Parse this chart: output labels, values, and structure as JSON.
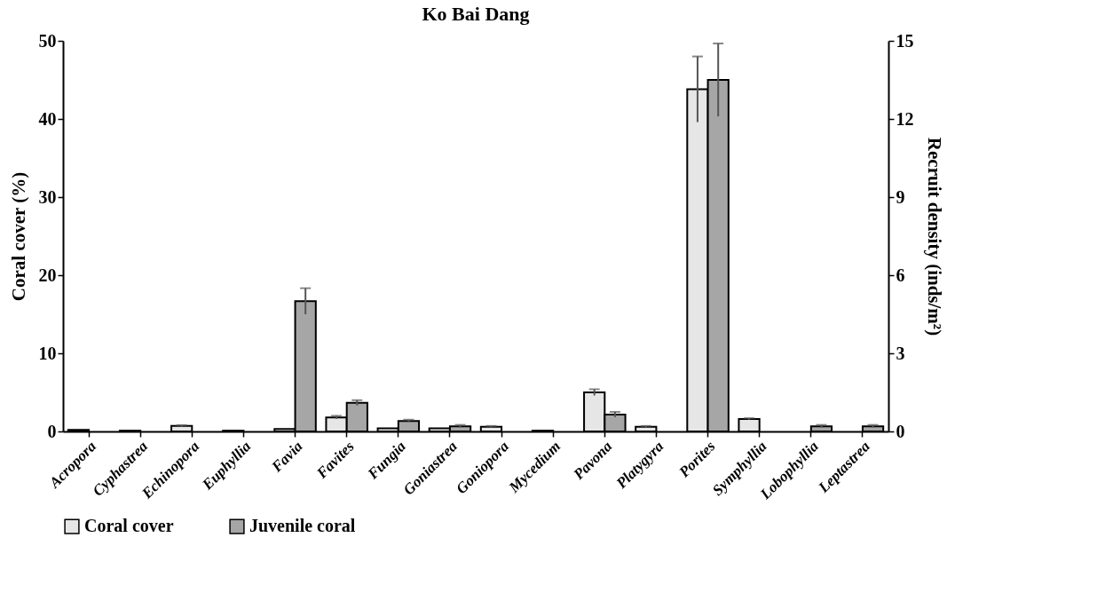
{
  "chart_data": {
    "type": "bar",
    "title": "Ko Bai Dang",
    "ylabel": "Coral cover (%)",
    "y2label": "Recruit density (inds/m²)",
    "categories": [
      "Acropora",
      "Cyphastrea",
      "Echinopora",
      "Euphyllia",
      "Favia",
      "Favites",
      "Fungia",
      "Goniastrea",
      "Goniopora",
      "Mycedium",
      "Pavona",
      "Platygyra",
      "Porites",
      "Symphyllia",
      "Lobophyllia",
      "Leptastrea"
    ],
    "series": [
      {
        "name": "Coral cover",
        "type": "bar",
        "color": "#e6e6e6",
        "values": [
          0.2,
          0.1,
          0.7,
          0.1,
          0.3,
          1.8,
          0.4,
          0.4,
          0.6,
          0.1,
          5.0,
          0.6,
          43.8,
          1.6,
          null,
          null
        ],
        "errors": [
          null,
          null,
          0.1,
          null,
          null,
          0.2,
          null,
          null,
          0.1,
          null,
          0.4,
          0.1,
          4.2,
          0.1,
          null,
          null
        ]
      },
      {
        "name": "Juvenile coral",
        "type": "bar",
        "axis": "y2",
        "color": "#a6a6a6",
        "values": [
          null,
          null,
          null,
          null,
          5.0,
          1.1,
          0.4,
          0.2,
          null,
          null,
          0.65,
          null,
          13.5,
          null,
          0.2,
          0.2
        ],
        "errors": [
          null,
          null,
          null,
          null,
          0.5,
          0.1,
          0.05,
          0.05,
          null,
          null,
          0.1,
          null,
          1.4,
          null,
          0.05,
          0.05
        ]
      }
    ],
    "ylim": [
      0,
      50
    ],
    "yticks": [
      0,
      10,
      20,
      30,
      40,
      50
    ],
    "y2lim": [
      0,
      15
    ],
    "y2ticks": [
      0,
      3,
      6,
      9,
      12,
      15
    ],
    "legend": "bottom",
    "grid": false
  }
}
